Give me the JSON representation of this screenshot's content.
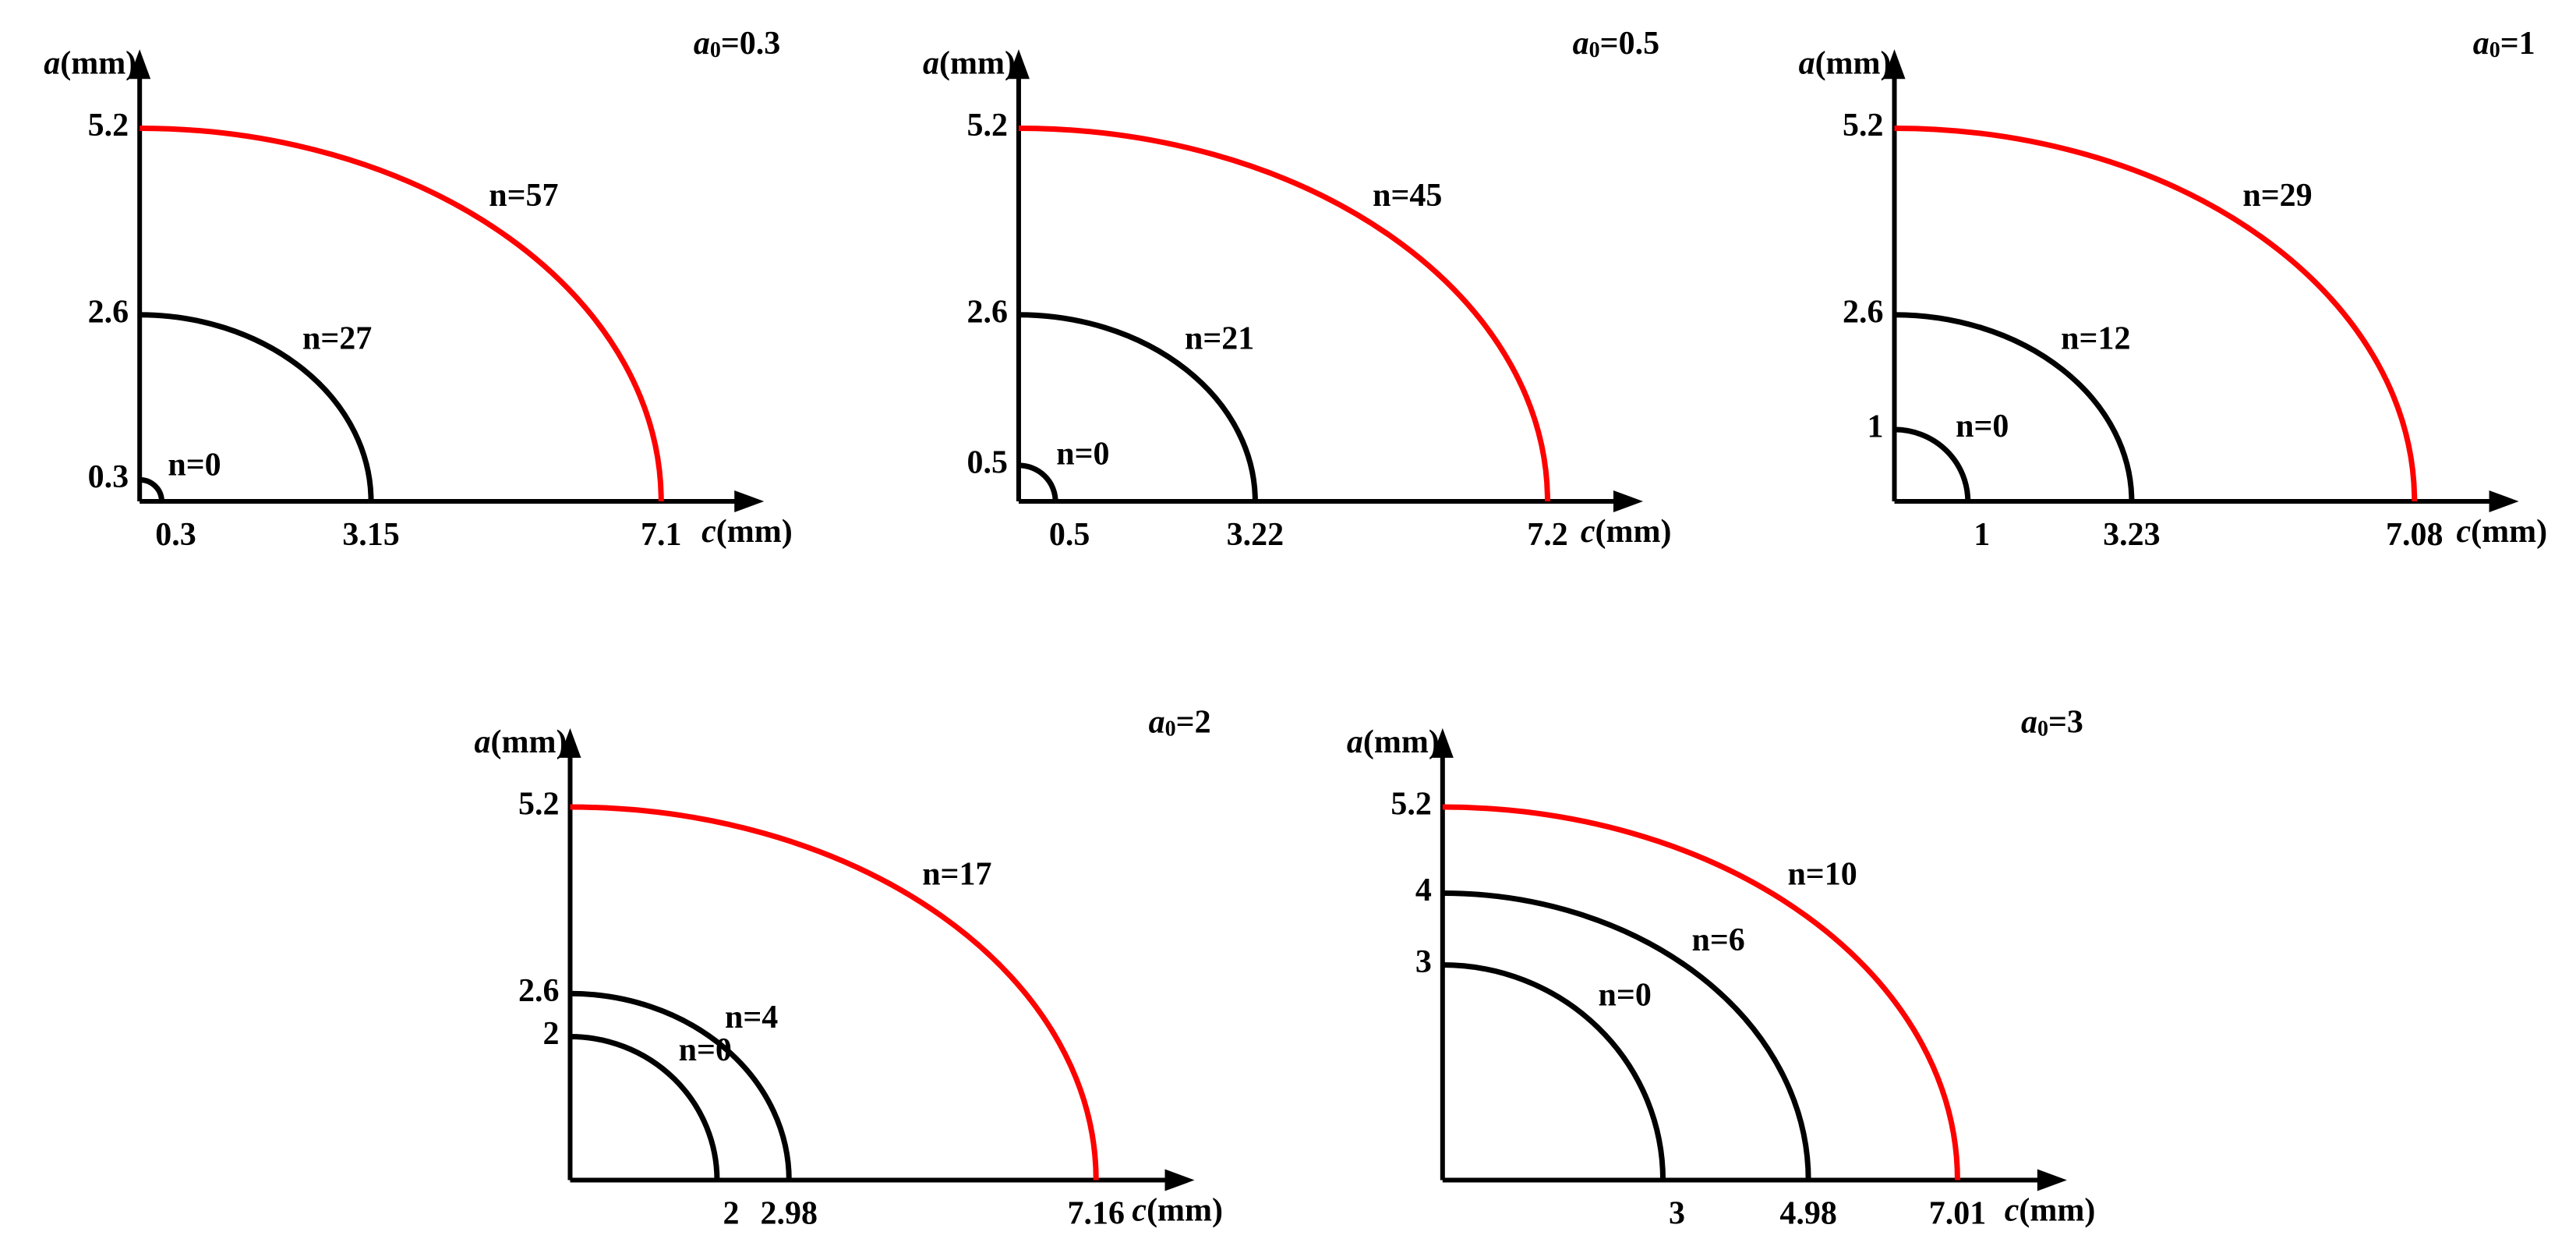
{
  "chart_data": [
    {
      "type": "quarter-ellipse",
      "title": "a0=0.3",
      "x_label": "c(mm)",
      "y_label": "a(mm)",
      "xlim": [
        0,
        8.5
      ],
      "ylim": [
        0,
        6.3
      ],
      "xticks": [
        0.3,
        3.15,
        7.1
      ],
      "yticks": [
        0.3,
        2.6,
        5.2
      ],
      "series": [
        {
          "name": "n=0",
          "color": "#000000",
          "a": 0.3,
          "c": 0.3
        },
        {
          "name": "n=27",
          "color": "#000000",
          "a": 2.6,
          "c": 3.15
        },
        {
          "name": "n=57",
          "color": "#ff0000",
          "a": 5.2,
          "c": 7.1
        }
      ]
    },
    {
      "type": "quarter-ellipse",
      "title": "a0=0.5",
      "x_label": "c(mm)",
      "y_label": "a(mm)",
      "xlim": [
        0,
        8.5
      ],
      "ylim": [
        0,
        6.3
      ],
      "xticks": [
        0.5,
        3.22,
        7.2
      ],
      "yticks": [
        0.5,
        2.6,
        5.2
      ],
      "series": [
        {
          "name": "n=0",
          "color": "#000000",
          "a": 0.5,
          "c": 0.5
        },
        {
          "name": "n=21",
          "color": "#000000",
          "a": 2.6,
          "c": 3.22
        },
        {
          "name": "n=45",
          "color": "#ff0000",
          "a": 5.2,
          "c": 7.2
        }
      ]
    },
    {
      "type": "quarter-ellipse",
      "title": "a0=1",
      "x_label": "c(mm)",
      "y_label": "a(mm)",
      "xlim": [
        0,
        8.5
      ],
      "ylim": [
        0,
        6.3
      ],
      "xticks": [
        1,
        3.23,
        7.08
      ],
      "yticks": [
        1,
        2.6,
        5.2
      ],
      "series": [
        {
          "name": "n=0",
          "color": "#000000",
          "a": 1,
          "c": 1
        },
        {
          "name": "n=12",
          "color": "#000000",
          "a": 2.6,
          "c": 3.23
        },
        {
          "name": "n=29",
          "color": "#ff0000",
          "a": 5.2,
          "c": 7.08
        }
      ]
    },
    {
      "type": "quarter-ellipse",
      "title": "a0=2",
      "x_label": "c(mm)",
      "y_label": "a(mm)",
      "xlim": [
        0,
        8.5
      ],
      "ylim": [
        0,
        6.3
      ],
      "xticks": [
        2,
        2.98,
        7.16
      ],
      "yticks": [
        2,
        2.6,
        5.2
      ],
      "series": [
        {
          "name": "n=0",
          "color": "#000000",
          "a": 2,
          "c": 2
        },
        {
          "name": "n=4",
          "color": "#000000",
          "a": 2.6,
          "c": 2.98
        },
        {
          "name": "n=17",
          "color": "#ff0000",
          "a": 5.2,
          "c": 7.16
        }
      ]
    },
    {
      "type": "quarter-ellipse",
      "title": "a0=3",
      "x_label": "c(mm)",
      "y_label": "a(mm)",
      "xlim": [
        0,
        8.5
      ],
      "ylim": [
        0,
        6.3
      ],
      "xticks": [
        3,
        4.98,
        7.01
      ],
      "yticks": [
        3,
        4,
        5.2
      ],
      "series": [
        {
          "name": "n=0",
          "color": "#000000",
          "a": 3,
          "c": 3
        },
        {
          "name": "n=6",
          "color": "#000000",
          "a": 4,
          "c": 4.98
        },
        {
          "name": "n=10",
          "color": "#ff0000",
          "a": 5.2,
          "c": 7.01
        }
      ]
    }
  ]
}
